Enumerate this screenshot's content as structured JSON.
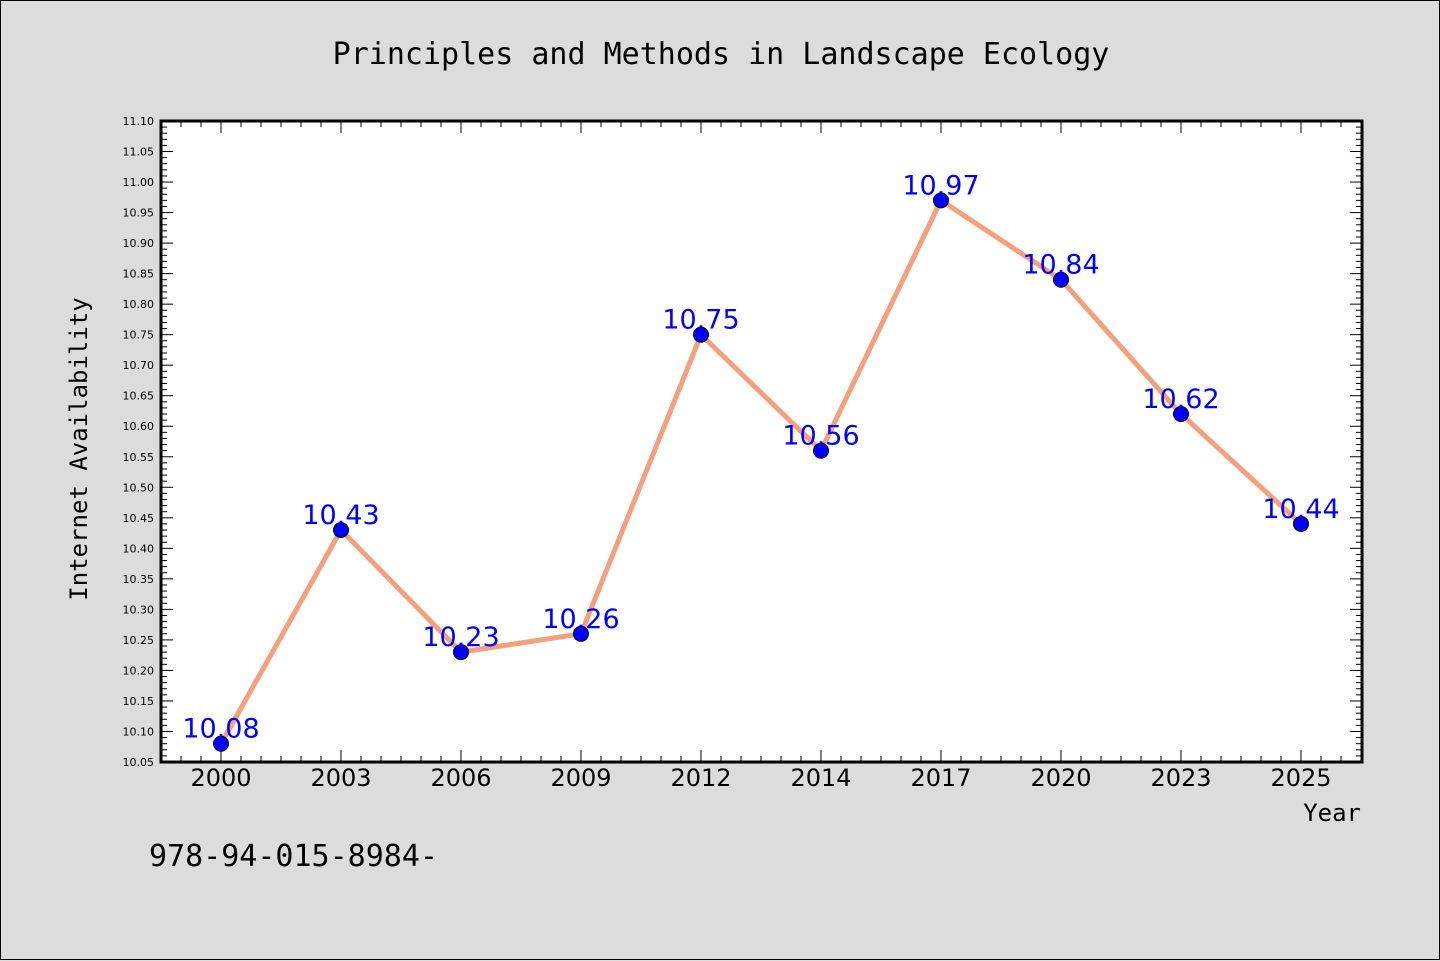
{
  "chart_data": {
    "type": "line",
    "title": "Principles and Methods in Landscape Ecology",
    "xlabel": "Year",
    "ylabel": "Internet Availability",
    "categories": [
      "2000",
      "2003",
      "2006",
      "2009",
      "2012",
      "2014",
      "2017",
      "2020",
      "2023",
      "2025"
    ],
    "series": [
      {
        "values": [
          10.08,
          10.43,
          10.23,
          10.26,
          10.75,
          10.56,
          10.97,
          10.84,
          10.62,
          10.44
        ]
      }
    ],
    "ylim": [
      10.05,
      11.1
    ],
    "ytick_step": 0.05,
    "grid": false,
    "data_labels": true,
    "colors": {
      "line": "#f4a07c",
      "marker": "#0000ff",
      "label": "#0000ff",
      "plot_background": "#ffffff",
      "page_background": "#dcdcdc"
    }
  },
  "footnote": "978-94-015-8984-"
}
